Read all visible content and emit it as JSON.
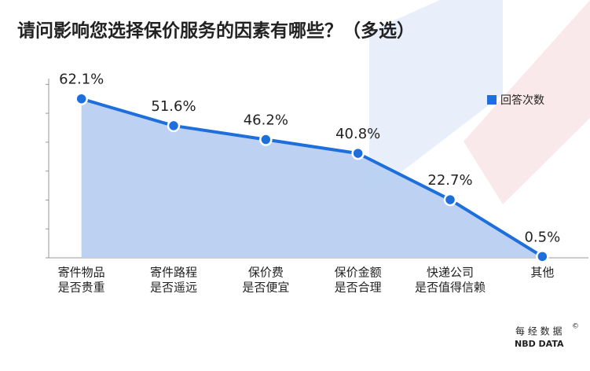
{
  "chart_data": {
    "type": "area-line",
    "title": "请问影响您选择保价服务的因素有哪些？（多选）",
    "categories": [
      [
        "寄件物品",
        "是否贵重"
      ],
      [
        "寄件路程",
        "是否遥远"
      ],
      [
        "保价费",
        "是否便宜"
      ],
      [
        "保价金额",
        "是否合理"
      ],
      [
        "快递公司",
        "是否值得信赖"
      ],
      [
        "其他"
      ]
    ],
    "series": [
      {
        "name": "回答次数",
        "color": "#1e6fdc",
        "fill": "#b9d0f1",
        "values": [
          62.1,
          51.6,
          46.2,
          40.8,
          22.7,
          0.5
        ],
        "value_labels": [
          "62.1%",
          "51.6%",
          "46.2%",
          "40.8%",
          "22.7%",
          "0.5%"
        ]
      }
    ],
    "ylim": [
      0,
      70
    ],
    "legend": "top-right",
    "watermark": {
      "cn": "每 经 数 据",
      "en": "NBD DATA",
      "mark": "©"
    }
  }
}
